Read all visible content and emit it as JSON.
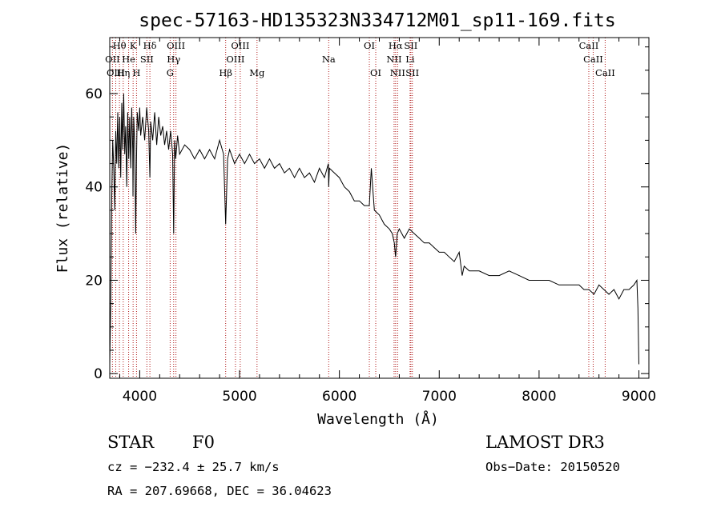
{
  "chart_data": {
    "type": "line",
    "title": "spec-57163-HD135323N334712M01_sp11-169.fits",
    "xlabel": "Wavelength (Å)",
    "ylabel": "Flux (relative)",
    "xlim": [
      3700,
      9100
    ],
    "ylim": [
      -1,
      72
    ],
    "xticks": [
      4000,
      5000,
      6000,
      7000,
      8000,
      9000
    ],
    "yticks": [
      0,
      20,
      40,
      60
    ],
    "series": [
      {
        "name": "flux",
        "x": [
          3700,
          3710,
          3720,
          3730,
          3740,
          3750,
          3760,
          3770,
          3780,
          3790,
          3800,
          3810,
          3820,
          3830,
          3840,
          3850,
          3860,
          3870,
          3880,
          3890,
          3900,
          3910,
          3920,
          3930,
          3933,
          3940,
          3950,
          3960,
          3968,
          3975,
          3990,
          4000,
          4010,
          4030,
          4050,
          4070,
          4090,
          4102,
          4110,
          4130,
          4150,
          4170,
          4190,
          4210,
          4230,
          4250,
          4270,
          4290,
          4310,
          4330,
          4340,
          4350,
          4360,
          4380,
          4400,
          4450,
          4500,
          4550,
          4600,
          4650,
          4700,
          4750,
          4800,
          4840,
          4861,
          4880,
          4900,
          4950,
          5000,
          5050,
          5100,
          5150,
          5200,
          5250,
          5300,
          5350,
          5400,
          5450,
          5500,
          5550,
          5600,
          5650,
          5700,
          5750,
          5800,
          5850,
          5890,
          5893,
          5900,
          5950,
          6000,
          6050,
          6100,
          6150,
          6200,
          6250,
          6300,
          6320,
          6350,
          6400,
          6450,
          6500,
          6530,
          6550,
          6563,
          6580,
          6600,
          6650,
          6700,
          6750,
          6800,
          6850,
          6900,
          6950,
          7000,
          7050,
          7100,
          7150,
          7200,
          7230,
          7250,
          7300,
          7400,
          7500,
          7600,
          7700,
          7800,
          7900,
          8000,
          8100,
          8200,
          8300,
          8400,
          8450,
          8500,
          8550,
          8600,
          8650,
          8700,
          8750,
          8800,
          8850,
          8900,
          8950,
          8980,
          8990,
          9000
        ],
        "values": [
          2,
          15,
          38,
          50,
          44,
          35,
          52,
          45,
          56,
          44,
          55,
          42,
          58,
          48,
          60,
          47,
          53,
          40,
          56,
          46,
          55,
          44,
          57,
          48,
          38,
          55,
          49,
          30,
          46,
          56,
          52,
          57,
          51,
          55,
          50,
          57,
          52,
          42,
          54,
          50,
          56,
          49,
          55,
          51,
          53,
          49,
          52,
          48,
          52,
          47,
          30,
          50,
          46,
          51,
          47,
          49,
          48,
          46,
          48,
          46,
          48,
          46,
          50,
          47,
          32,
          46,
          48,
          45,
          47,
          45,
          47,
          45,
          46,
          44,
          46,
          44,
          45,
          43,
          44,
          42,
          44,
          42,
          43,
          41,
          44,
          42,
          45,
          40,
          44,
          43,
          42,
          40,
          39,
          37,
          37,
          36,
          36,
          44,
          35,
          34,
          32,
          31,
          30,
          28,
          25,
          30,
          31,
          29,
          31,
          30,
          29,
          28,
          28,
          27,
          26,
          26,
          25,
          24,
          26,
          21,
          23,
          22,
          22,
          21,
          21,
          22,
          21,
          20,
          20,
          20,
          19,
          19,
          19,
          18,
          18,
          17,
          19,
          18,
          17,
          18,
          16,
          18,
          18,
          19,
          20,
          14,
          2
        ]
      }
    ],
    "lines": [
      {
        "label": "Hθ",
        "wl": 3797,
        "row": 0
      },
      {
        "label": "K",
        "wl": 3934,
        "row": 0
      },
      {
        "label": "Hδ",
        "wl": 4102,
        "row": 0
      },
      {
        "label": "OIII",
        "wl": 4363,
        "row": 0
      },
      {
        "label": "OIII",
        "wl": 5007,
        "row": 0
      },
      {
        "label": "OI",
        "wl": 6300,
        "row": 0
      },
      {
        "label": "Hα",
        "wl": 6563,
        "row": 0
      },
      {
        "label": "SII",
        "wl": 6716,
        "row": 0
      },
      {
        "label": "CaII",
        "wl": 8498,
        "row": 0
      },
      {
        "label": "OII",
        "wl": 3727,
        "row": 1
      },
      {
        "label": "He",
        "wl": 3889,
        "row": 1
      },
      {
        "label": "SII",
        "wl": 4072,
        "row": 1
      },
      {
        "label": "Hγ",
        "wl": 4340,
        "row": 1
      },
      {
        "label": "OIII",
        "wl": 4959,
        "row": 1
      },
      {
        "label": "Na",
        "wl": 5893,
        "row": 1
      },
      {
        "label": "NII",
        "wl": 6548,
        "row": 1
      },
      {
        "label": "Li",
        "wl": 6708,
        "row": 1
      },
      {
        "label": "CaII",
        "wl": 8542,
        "row": 1
      },
      {
        "label": "OIII",
        "wl": 3760,
        "row": 2
      },
      {
        "label": "Hη",
        "wl": 3835,
        "row": 2
      },
      {
        "label": "H",
        "wl": 3968,
        "row": 2
      },
      {
        "label": "G",
        "wl": 4305,
        "row": 2
      },
      {
        "label": "Hβ",
        "wl": 4861,
        "row": 2
      },
      {
        "label": "Mg",
        "wl": 5175,
        "row": 2
      },
      {
        "label": "OI",
        "wl": 6364,
        "row": 2
      },
      {
        "label": "NII",
        "wl": 6583,
        "row": 2
      },
      {
        "label": "SII",
        "wl": 6731,
        "row": 2
      },
      {
        "label": "CaII",
        "wl": 8662,
        "row": 2
      }
    ]
  },
  "info": {
    "class": "STAR",
    "subclass": "F0",
    "survey": "LAMOST DR3",
    "cz": "cz = −232.4 ± 25.7 km/s",
    "obs_date": "Obs−Date: 20150520",
    "coords": "RA = 207.69668, DEC =  36.04623"
  },
  "colors": {
    "line_marker": "#b01818",
    "spectrum": "#000000",
    "axes": "#000000"
  }
}
